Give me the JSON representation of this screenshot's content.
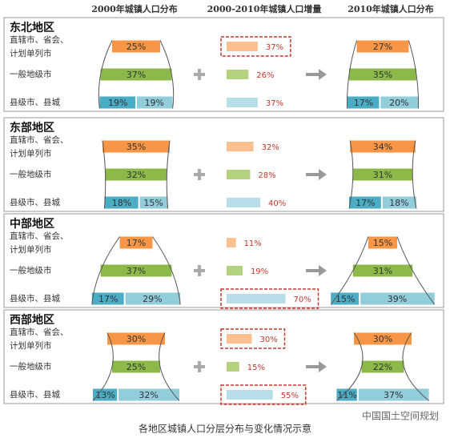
{
  "columns": [
    "2000年城镇人口分布",
    "2000-2010年城镇人口增量",
    "2010年城镇人口分布"
  ],
  "row_labels": [
    [
      "直辖市、省会、",
      "计划单列市"
    ],
    [
      "一般地级市"
    ],
    [
      "县级市、县城"
    ]
  ],
  "regions": [
    {
      "name": "东北地区",
      "y2000": [
        "25%",
        "37%",
        [
          "19%",
          "19%"
        ]
      ],
      "increase": [
        "37%",
        "26%",
        "37%"
      ],
      "highlight": [
        true,
        false,
        false
      ],
      "y2010": [
        "27%",
        "35%",
        [
          "17%",
          "20%"
        ]
      ]
    },
    {
      "name": "东部地区",
      "y2000": [
        "35%",
        "32%",
        [
          "18%",
          "15%"
        ]
      ],
      "increase": [
        "32%",
        "28%",
        "40%"
      ],
      "highlight": [
        false,
        false,
        false
      ],
      "y2010": [
        "34%",
        "31%",
        [
          "17%",
          "18%"
        ]
      ]
    },
    {
      "name": "中部地区",
      "y2000": [
        "17%",
        "37%",
        [
          "17%",
          "29%"
        ]
      ],
      "increase": [
        "11%",
        "19%",
        "70%"
      ],
      "highlight": [
        false,
        false,
        true
      ],
      "y2010": [
        "15%",
        "31%",
        [
          "15%",
          "39%"
        ]
      ]
    },
    {
      "name": "西部地区",
      "y2000": [
        "30%",
        "25%",
        [
          "13%",
          "32%"
        ]
      ],
      "increase": [
        "30%",
        "15%",
        "55%"
      ],
      "highlight": [
        true,
        false,
        true
      ],
      "y2010": [
        "30%",
        "22%",
        [
          "11%",
          "37%"
        ]
      ]
    }
  ],
  "caption": "各地区城镇人口分层分布与变化情况示意",
  "watermark": "中国国土空间规划"
}
